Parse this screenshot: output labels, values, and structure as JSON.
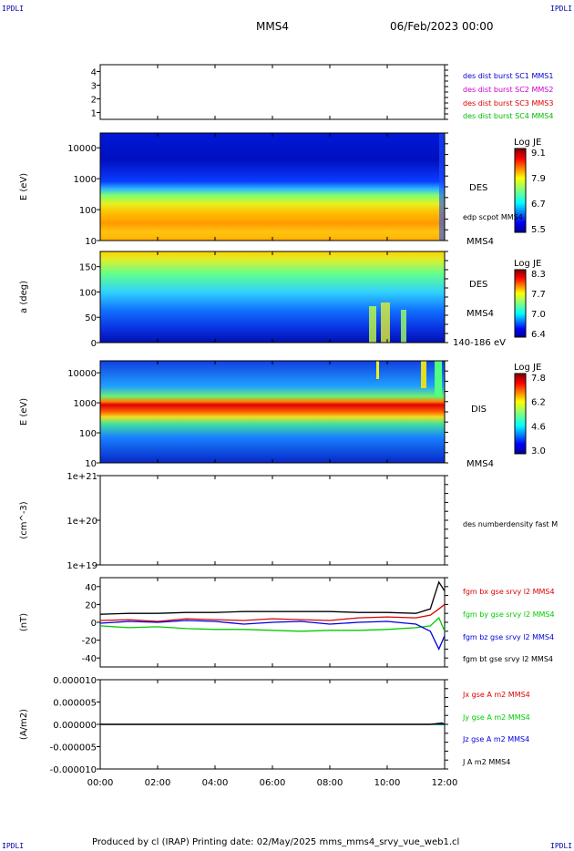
{
  "corner_labels": {
    "top_left": "IPDLI",
    "top_right": "IPDLI",
    "bottom_left": "IPDLI",
    "bottom_right": "IPDLI"
  },
  "header": {
    "spacecraft": "MMS4",
    "date": "06/Feb/2023 00:00"
  },
  "footer": {
    "text": "Produced by cl (IRAP)   Printing date: 02/May/2025   mms_mms4_srvy_vue_web1.cl"
  },
  "chart_data": [
    {
      "type": "table",
      "id": "burst",
      "ylabel": "",
      "ylim": [
        0.5,
        4.5
      ],
      "yticks": [
        1,
        2,
        3,
        4
      ],
      "legend": [
        {
          "text": "des dist burst SC1 MMS1",
          "color": "#0000cc"
        },
        {
          "text": "des dist burst SC2 MMS2",
          "color": "#cc00cc"
        },
        {
          "text": "des dist burst SC3 MMS3",
          "color": "#dd0000"
        },
        {
          "text": "des dist burst SC4 MMS4",
          "color": "#00bb00"
        }
      ]
    },
    {
      "type": "heatmap",
      "id": "des_energy",
      "ylabel": "E (eV)",
      "yscale": "log",
      "ylim": [
        10,
        30000
      ],
      "yticks": [
        10,
        100,
        1000,
        10000
      ],
      "ytick_labels": [
        "10",
        "100",
        "1000",
        "10000"
      ],
      "side_labels": [
        "DES",
        "edp scpot MMS4",
        "MMS4"
      ],
      "colorbar": {
        "title": "Log JE",
        "ticks": [
          "9.1",
          "7.9",
          "6.7",
          "5.5"
        ]
      }
    },
    {
      "type": "heatmap",
      "id": "des_pitch",
      "ylabel": "a (deg)",
      "ylim": [
        0,
        180
      ],
      "yticks": [
        0,
        50,
        100,
        150
      ],
      "ytick_labels": [
        "0",
        "50",
        "100",
        "150"
      ],
      "side_labels": [
        "DES",
        "MMS4",
        "140-186 eV"
      ],
      "colorbar": {
        "title": "Log JE",
        "ticks": [
          "8.3",
          "7.7",
          "7.0",
          "6.4"
        ]
      }
    },
    {
      "type": "heatmap",
      "id": "dis_energy",
      "ylabel": "E (eV)",
      "yscale": "log",
      "ylim": [
        10,
        25000
      ],
      "yticks": [
        10,
        100,
        1000,
        10000
      ],
      "ytick_labels": [
        "10",
        "100",
        "1000",
        "10000"
      ],
      "side_labels": [
        "DIS",
        "MMS4"
      ],
      "colorbar": {
        "title": "Log JE",
        "ticks": [
          "7.8",
          "6.2",
          "4.6",
          "3.0"
        ]
      }
    },
    {
      "type": "line",
      "id": "density",
      "ylabel": "(cm^-3)",
      "yscale": "log",
      "ylim": [
        1e+19,
        1e+21
      ],
      "ytick_labels": [
        "1e+21",
        "1e+20",
        "1e+19"
      ],
      "legend": [
        {
          "text": "des numberdensity fast M",
          "color": "#000000"
        }
      ],
      "series": []
    },
    {
      "type": "line",
      "id": "fgm",
      "ylabel": "(nT)",
      "ylim": [
        -50,
        50
      ],
      "yticks": [
        -40,
        -20,
        0,
        20,
        40
      ],
      "ytick_labels": [
        "-40",
        "-20",
        "0",
        "20",
        "40"
      ],
      "x": [
        0,
        1,
        2,
        3,
        4,
        5,
        6,
        7,
        8,
        9,
        10,
        11,
        11.5,
        11.8,
        12
      ],
      "series": [
        {
          "name": "fgm bx gse srvy l2 MMS4",
          "color": "#dd0000",
          "values": [
            2,
            3,
            1,
            4,
            3,
            2,
            4,
            3,
            2,
            5,
            6,
            5,
            8,
            15,
            20
          ]
        },
        {
          "name": "fgm by gse srvy l2 MMS4",
          "color": "#00cc00",
          "values": [
            -4,
            -6,
            -5,
            -7,
            -8,
            -8,
            -9,
            -10,
            -9,
            -9,
            -8,
            -6,
            -4,
            5,
            -10
          ]
        },
        {
          "name": "fgm bz gse srvy l2 MMS4",
          "color": "#0000dd",
          "values": [
            -1,
            1,
            0,
            2,
            1,
            -2,
            0,
            1,
            -2,
            0,
            1,
            -2,
            -10,
            -30,
            -15
          ]
        },
        {
          "name": "fgm bt gse srvy l2 MMS4",
          "color": "#000000",
          "values": [
            9,
            10,
            10,
            11,
            11,
            12,
            12,
            12,
            12,
            11,
            11,
            10,
            15,
            45,
            35
          ]
        }
      ]
    },
    {
      "type": "line",
      "id": "current",
      "ylabel": "(A/m2)",
      "ylim": [
        -1e-05,
        1e-05
      ],
      "yticks": [
        -1e-05,
        -5e-06,
        0,
        5e-06,
        1e-05
      ],
      "ytick_labels": [
        "-0.000010",
        "-0.000005",
        "0.000000",
        "0.000005",
        "0.000010"
      ],
      "x": [
        0,
        2,
        4,
        6,
        8,
        10,
        11.5,
        11.9,
        12
      ],
      "series": [
        {
          "name": "Jx gse A m2 MMS4",
          "color": "#dd0000",
          "values": [
            0,
            0,
            0,
            0,
            0,
            0,
            0,
            2e-07,
            0
          ]
        },
        {
          "name": "Jy gse A m2 MMS4",
          "color": "#00cc00",
          "values": [
            0,
            0,
            0,
            0,
            0,
            0,
            0,
            -1e-07,
            0
          ]
        },
        {
          "name": "Jz gse A m2 MMS4",
          "color": "#0000dd",
          "values": [
            0,
            0,
            0,
            0,
            0,
            0,
            0,
            1e-07,
            0
          ]
        },
        {
          "name": "J A m2 MMS4",
          "color": "#000000",
          "values": [
            0,
            0,
            0,
            0,
            0,
            0,
            0,
            3e-07,
            0
          ]
        }
      ]
    }
  ],
  "xaxis": {
    "range": [
      0,
      12
    ],
    "ticks": [
      0,
      2,
      4,
      6,
      8,
      10,
      12
    ],
    "tick_labels": [
      "00:00",
      "02:00",
      "04:00",
      "06:00",
      "08:00",
      "10:00",
      "12:00"
    ]
  }
}
